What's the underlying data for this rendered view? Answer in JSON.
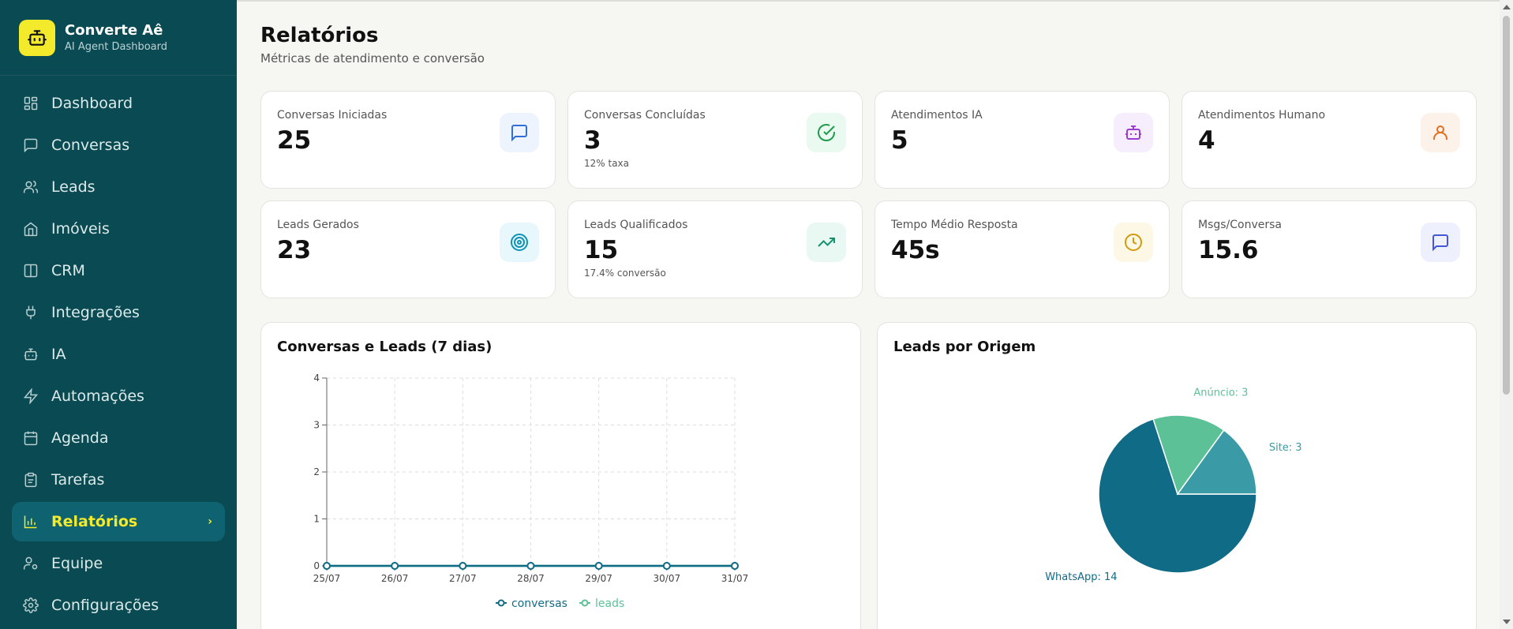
{
  "brand": {
    "name": "Converte Aê",
    "subtitle": "AI Agent Dashboard"
  },
  "sidebar": {
    "items": [
      {
        "label": "Dashboard",
        "icon": "layout-grid-icon"
      },
      {
        "label": "Conversas",
        "icon": "message-square-icon"
      },
      {
        "label": "Leads",
        "icon": "users-icon"
      },
      {
        "label": "Imóveis",
        "icon": "home-icon"
      },
      {
        "label": "CRM",
        "icon": "columns-icon"
      },
      {
        "label": "Integrações",
        "icon": "plug-icon"
      },
      {
        "label": "IA",
        "icon": "bot-icon"
      },
      {
        "label": "Automações",
        "icon": "zap-icon"
      },
      {
        "label": "Agenda",
        "icon": "calendar-icon"
      },
      {
        "label": "Tarefas",
        "icon": "clipboard-icon"
      },
      {
        "label": "Relatórios",
        "icon": "bar-chart-icon",
        "active": true
      },
      {
        "label": "Equipe",
        "icon": "user-cog-icon"
      },
      {
        "label": "Configurações",
        "icon": "settings-icon"
      }
    ]
  },
  "header": {
    "title": "Relatórios",
    "subtitle": "Métricas de atendimento e conversão"
  },
  "stats": [
    {
      "label": "Conversas Iniciadas",
      "value": "25",
      "sub": "",
      "icon": "message-square-icon",
      "color": "#2f6fd6",
      "bg": "#eef4fd"
    },
    {
      "label": "Conversas Concluídas",
      "value": "3",
      "sub": "12% taxa",
      "icon": "check-circle-icon",
      "color": "#1f9a4b",
      "bg": "#eafaf0"
    },
    {
      "label": "Atendimentos IA",
      "value": "5",
      "sub": "",
      "icon": "bot-icon",
      "color": "#9b3fd0",
      "bg": "#f6eefc"
    },
    {
      "label": "Atendimentos Humano",
      "value": "4",
      "sub": "",
      "icon": "user-icon",
      "color": "#e0701f",
      "bg": "#fdf2ea"
    },
    {
      "label": "Leads Gerados",
      "value": "23",
      "sub": "",
      "icon": "target-icon",
      "color": "#0e93b3",
      "bg": "#e8f7fb"
    },
    {
      "label": "Leads Qualificados",
      "value": "15",
      "sub": "17.4% conversão",
      "icon": "trending-up-icon",
      "color": "#11956f",
      "bg": "#e9f8f3"
    },
    {
      "label": "Tempo Médio Resposta",
      "value": "45s",
      "sub": "",
      "icon": "clock-icon",
      "color": "#d39a0c",
      "bg": "#fdf8e6"
    },
    {
      "label": "Msgs/Conversa",
      "value": "15.6",
      "sub": "",
      "icon": "message-square-icon",
      "color": "#4657d6",
      "bg": "#eef0fd"
    }
  ],
  "line_panel": {
    "title": "Conversas e Leads (7 dias)"
  },
  "pie_panel": {
    "title": "Leads por Origem"
  },
  "chart_data": [
    {
      "type": "line",
      "title": "Conversas e Leads (7 dias)",
      "categories": [
        "25/07",
        "26/07",
        "27/07",
        "28/07",
        "29/07",
        "30/07",
        "31/07"
      ],
      "series": [
        {
          "name": "conversas",
          "values": [
            0,
            0,
            0,
            0,
            0,
            0,
            0
          ],
          "color": "#106c86"
        },
        {
          "name": "leads",
          "values": [
            0,
            0,
            0,
            0,
            0,
            0,
            0
          ],
          "color": "#5cc197"
        }
      ],
      "ylim": [
        0,
        4
      ],
      "yticks": [
        "0",
        "1",
        "2",
        "3",
        "4"
      ],
      "grid": true,
      "legend": "bottom"
    },
    {
      "type": "pie",
      "title": "Leads por Origem",
      "slices": [
        {
          "name": "WhatsApp",
          "value": 14,
          "label": "WhatsApp: 14",
          "color": "#106c86"
        },
        {
          "name": "Anúncio",
          "value": 3,
          "label": "Anúncio: 3",
          "color": "#5cc197"
        },
        {
          "name": "Site",
          "value": 3,
          "label": "Site: 3",
          "color": "#3a9aa5"
        }
      ]
    }
  ]
}
